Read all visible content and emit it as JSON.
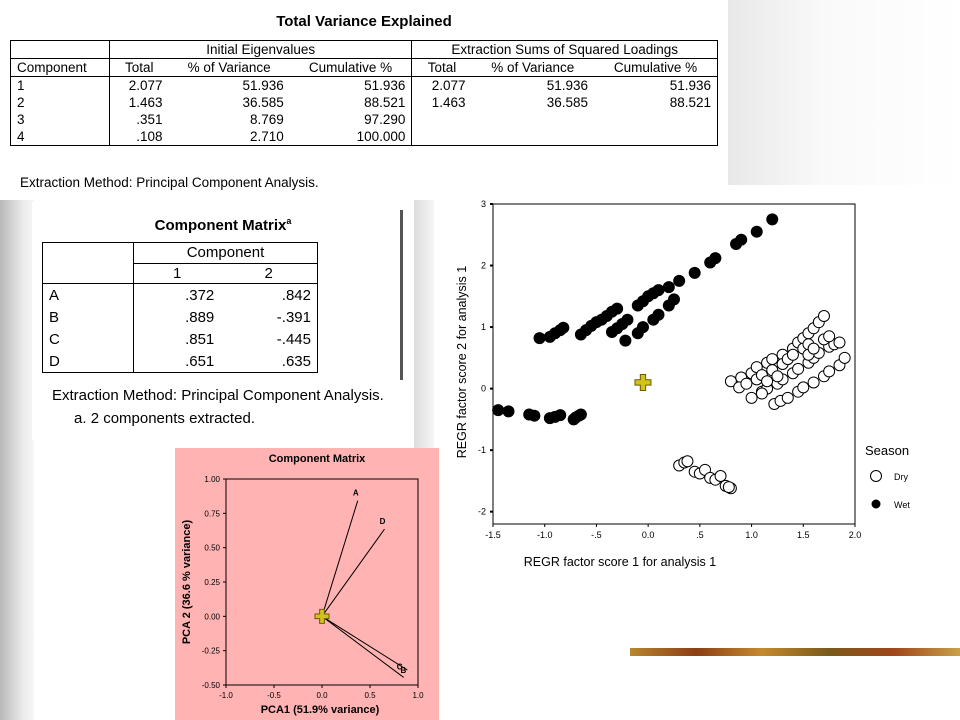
{
  "variance_table": {
    "title": "Total Variance Explained",
    "group_initial": "Initial Eigenvalues",
    "group_extraction": "Extraction Sums of Squared Loadings",
    "columns": [
      "Component",
      "Total",
      "% of Variance",
      "Cumulative %",
      "Total",
      "% of Variance",
      "Cumulative %"
    ],
    "rows": [
      [
        "1",
        "2.077",
        "51.936",
        "51.936",
        "2.077",
        "51.936",
        "51.936"
      ],
      [
        "2",
        "1.463",
        "36.585",
        "88.521",
        "1.463",
        "36.585",
        "88.521"
      ],
      [
        "3",
        ".351",
        "8.769",
        "97.290",
        "",
        "",
        ""
      ],
      [
        "4",
        ".108",
        "2.710",
        "100.000",
        "",
        "",
        ""
      ]
    ],
    "footnote": "Extraction Method: Principal Component Analysis."
  },
  "component_matrix": {
    "title": "Component Matrix",
    "title_sup": "a",
    "header": "Component",
    "subheaders": [
      "1",
      "2"
    ],
    "rows": [
      [
        "A",
        ".372",
        ".842"
      ],
      [
        "B",
        ".889",
        "-.391"
      ],
      [
        "C",
        ".851",
        "-.445"
      ],
      [
        "D",
        ".651",
        ".635"
      ]
    ],
    "footnote": "Extraction Method: Principal Component Analysis.",
    "note_marker": "a.",
    "note_text": "2 components extracted."
  },
  "chart_data": [
    {
      "type": "line",
      "title": "Component Matrix",
      "xlabel": "PCA1 (51.9% variance)",
      "ylabel": "PCA 2 (36.6 % variance)",
      "xlim": [
        -1.0,
        1.0
      ],
      "ylim": [
        -0.5,
        1.0
      ],
      "x_ticks": [
        "-1.0",
        "-0.5",
        "0.0",
        "0.5",
        "1.0"
      ],
      "y_ticks": [
        "1.00",
        "0.75",
        "0.50",
        "0.25",
        "0.00",
        "-0.25",
        "-0.50"
      ],
      "vectors": [
        {
          "label": "A",
          "x": 0.372,
          "y": 0.842
        },
        {
          "label": "B",
          "x": 0.889,
          "y": -0.391
        },
        {
          "label": "C",
          "x": 0.851,
          "y": -0.445
        },
        {
          "label": "D",
          "x": 0.651,
          "y": 0.635
        }
      ],
      "origin_marker": {
        "x": 0,
        "y": 0,
        "color": "#d4c21c"
      },
      "background": "#ffb3b3"
    },
    {
      "type": "scatter",
      "xlabel": "REGR factor score   1 for analysis   1",
      "ylabel": "REGR factor score   2 for analysis   1",
      "xlim": [
        -1.5,
        2.0
      ],
      "ylim": [
        -2.2,
        3.0
      ],
      "x_ticks": [
        "-1.5",
        "-1.0",
        "-.5",
        "0.0",
        ".5",
        "1.0",
        "1.5",
        "2.0"
      ],
      "y_ticks": [
        "3",
        "2",
        "1",
        "0",
        "-1",
        "-2"
      ],
      "legend_title": "Season",
      "legend_position": "right",
      "series": [
        {
          "name": "Wet",
          "marker": "filled-circle",
          "points": [
            [
              -1.05,
              0.82
            ],
            [
              -0.95,
              0.84
            ],
            [
              -0.9,
              0.9
            ],
            [
              -0.85,
              0.95
            ],
            [
              -0.82,
              0.99
            ],
            [
              -0.65,
              0.88
            ],
            [
              -0.6,
              0.95
            ],
            [
              -0.55,
              1.02
            ],
            [
              -0.5,
              1.08
            ],
            [
              -0.45,
              1.12
            ],
            [
              -0.4,
              1.18
            ],
            [
              -0.35,
              1.25
            ],
            [
              -0.3,
              1.3
            ],
            [
              -0.35,
              0.92
            ],
            [
              -0.3,
              0.98
            ],
            [
              -0.25,
              1.05
            ],
            [
              -0.2,
              1.12
            ],
            [
              -0.22,
              0.78
            ],
            [
              -0.1,
              0.9
            ],
            [
              -0.05,
              1.0
            ],
            [
              -0.1,
              1.35
            ],
            [
              -0.05,
              1.42
            ],
            [
              0.0,
              1.5
            ],
            [
              0.05,
              1.55
            ],
            [
              0.1,
              1.6
            ],
            [
              0.05,
              1.12
            ],
            [
              0.1,
              1.2
            ],
            [
              0.2,
              1.35
            ],
            [
              0.25,
              1.45
            ],
            [
              0.2,
              1.65
            ],
            [
              0.3,
              1.75
            ],
            [
              0.45,
              1.88
            ],
            [
              0.6,
              2.05
            ],
            [
              0.65,
              2.12
            ],
            [
              0.85,
              2.35
            ],
            [
              0.9,
              2.42
            ],
            [
              1.05,
              2.55
            ],
            [
              1.2,
              2.75
            ],
            [
              -1.45,
              -0.35
            ],
            [
              -1.35,
              -0.37
            ],
            [
              -1.15,
              -0.42
            ],
            [
              -1.1,
              -0.44
            ],
            [
              -0.95,
              -0.48
            ],
            [
              -0.9,
              -0.46
            ],
            [
              -0.85,
              -0.43
            ],
            [
              -0.72,
              -0.5
            ],
            [
              -0.7,
              -0.47
            ],
            [
              -0.67,
              -0.44
            ],
            [
              -0.65,
              -0.42
            ]
          ]
        },
        {
          "name": "Dry",
          "marker": "open-circle",
          "points": [
            [
              0.8,
              0.12
            ],
            [
              0.9,
              0.18
            ],
            [
              1.0,
              0.25
            ],
            [
              1.05,
              0.35
            ],
            [
              1.15,
              0.42
            ],
            [
              1.2,
              0.48
            ],
            [
              1.3,
              0.55
            ],
            [
              1.4,
              0.65
            ],
            [
              1.45,
              0.75
            ],
            [
              1.5,
              0.82
            ],
            [
              1.55,
              0.9
            ],
            [
              1.6,
              0.98
            ],
            [
              1.65,
              1.08
            ],
            [
              1.7,
              1.18
            ],
            [
              0.88,
              0.02
            ],
            [
              0.95,
              0.08
            ],
            [
              1.05,
              0.15
            ],
            [
              1.1,
              0.22
            ],
            [
              1.2,
              0.3
            ],
            [
              1.3,
              0.4
            ],
            [
              1.35,
              0.48
            ],
            [
              1.4,
              0.55
            ],
            [
              1.5,
              0.65
            ],
            [
              1.55,
              0.72
            ],
            [
              1.1,
              -0.05
            ],
            [
              1.15,
              0.0
            ],
            [
              1.25,
              0.08
            ],
            [
              1.3,
              0.15
            ],
            [
              1.4,
              0.25
            ],
            [
              1.45,
              0.32
            ],
            [
              1.55,
              0.42
            ],
            [
              1.6,
              0.5
            ],
            [
              1.65,
              0.58
            ],
            [
              1.75,
              0.68
            ],
            [
              1.8,
              0.72
            ],
            [
              1.85,
              0.75
            ],
            [
              1.0,
              -0.15
            ],
            [
              1.1,
              -0.08
            ],
            [
              1.22,
              -0.25
            ],
            [
              1.28,
              -0.2
            ],
            [
              1.35,
              -0.15
            ],
            [
              1.45,
              -0.05
            ],
            [
              1.5,
              0.02
            ],
            [
              1.6,
              0.1
            ],
            [
              1.7,
              0.2
            ],
            [
              1.75,
              0.28
            ],
            [
              1.85,
              0.38
            ],
            [
              1.9,
              0.5
            ],
            [
              1.15,
              0.12
            ],
            [
              1.25,
              0.2
            ],
            [
              1.55,
              0.55
            ],
            [
              1.6,
              0.65
            ],
            [
              1.7,
              0.8
            ],
            [
              1.75,
              0.85
            ],
            [
              0.3,
              -1.25
            ],
            [
              0.35,
              -1.2
            ],
            [
              0.38,
              -1.18
            ],
            [
              0.45,
              -1.35
            ],
            [
              0.5,
              -1.38
            ],
            [
              0.55,
              -1.32
            ],
            [
              0.6,
              -1.45
            ],
            [
              0.65,
              -1.48
            ],
            [
              0.7,
              -1.42
            ],
            [
              0.75,
              -1.58
            ],
            [
              0.8,
              -1.62
            ],
            [
              0.78,
              -1.6
            ]
          ]
        }
      ],
      "center_marker": {
        "x": -0.05,
        "y": 0.1,
        "color": "#d4c21c"
      }
    }
  ]
}
